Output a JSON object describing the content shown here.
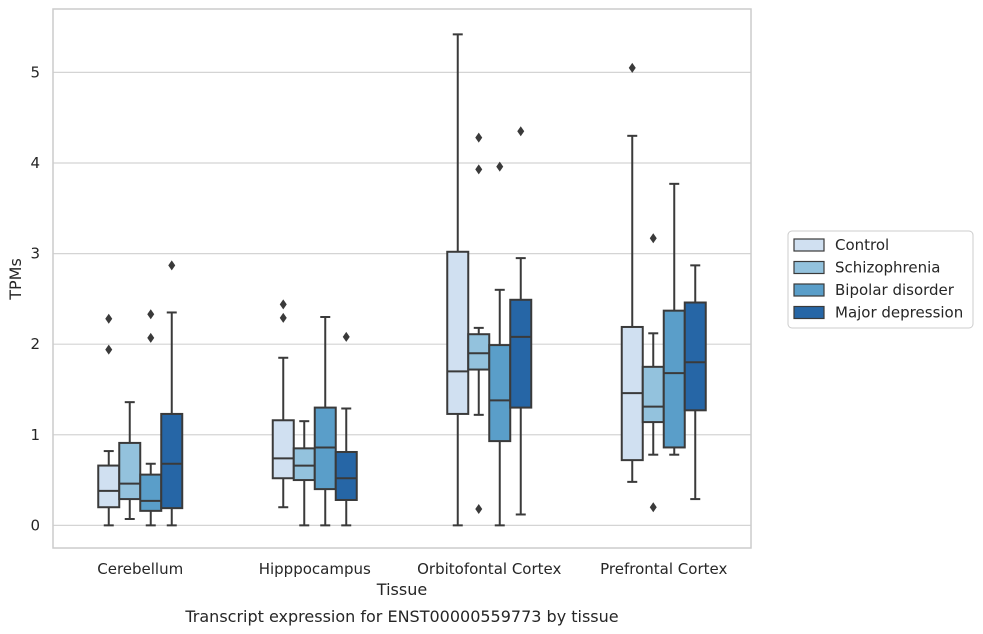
{
  "chart_data": {
    "type": "box",
    "title": "Transcript expression for ENST00000559773 by tissue",
    "xlabel": "Tissue",
    "ylabel": "TPMs",
    "ylim": [
      -0.25,
      5.7
    ],
    "yticks": [
      0,
      1,
      2,
      3,
      4,
      5
    ],
    "grid": "horizontal",
    "legend_position": "right",
    "categories": [
      "Cerebellum",
      "Hipppocampus",
      "Orbitofontal Cortex",
      "Prefrontal Cortex"
    ],
    "series": [
      {
        "name": "Control",
        "color": "#d0e0f1",
        "boxes": [
          {
            "min": 0.0,
            "q1": 0.2,
            "median": 0.38,
            "q3": 0.66,
            "max": 0.82,
            "outliers": [
              1.94,
              2.28
            ]
          },
          {
            "min": 0.2,
            "q1": 0.52,
            "median": 0.74,
            "q3": 1.16,
            "max": 1.85,
            "outliers": [
              2.29,
              2.44
            ]
          },
          {
            "min": 0.0,
            "q1": 1.23,
            "median": 1.7,
            "q3": 3.02,
            "max": 5.42,
            "outliers": []
          },
          {
            "min": 0.48,
            "q1": 0.72,
            "median": 1.46,
            "q3": 2.19,
            "max": 4.3,
            "outliers": [
              5.05
            ]
          }
        ]
      },
      {
        "name": "Schizophrenia",
        "color": "#93c2dd",
        "boxes": [
          {
            "min": 0.07,
            "q1": 0.29,
            "median": 0.46,
            "q3": 0.91,
            "max": 1.36,
            "outliers": []
          },
          {
            "min": 0.0,
            "q1": 0.5,
            "median": 0.66,
            "q3": 0.85,
            "max": 1.15,
            "outliers": []
          },
          {
            "min": 1.22,
            "q1": 1.72,
            "median": 1.9,
            "q3": 2.11,
            "max": 2.18,
            "outliers": [
              0.18,
              3.93,
              4.28
            ]
          },
          {
            "min": 0.78,
            "q1": 1.14,
            "median": 1.31,
            "q3": 1.75,
            "max": 2.12,
            "outliers": [
              0.2,
              3.17
            ]
          }
        ]
      },
      {
        "name": "Bipolar disorder",
        "color": "#5a9ec9",
        "boxes": [
          {
            "min": 0.0,
            "q1": 0.16,
            "median": 0.27,
            "q3": 0.56,
            "max": 0.68,
            "outliers": [
              2.07,
              2.33
            ]
          },
          {
            "min": 0.0,
            "q1": 0.4,
            "median": 0.86,
            "q3": 1.3,
            "max": 2.3,
            "outliers": []
          },
          {
            "min": 0.0,
            "q1": 0.93,
            "median": 1.38,
            "q3": 1.99,
            "max": 2.6,
            "outliers": [
              3.96
            ]
          },
          {
            "min": 0.78,
            "q1": 0.86,
            "median": 1.68,
            "q3": 2.37,
            "max": 3.77,
            "outliers": []
          }
        ]
      },
      {
        "name": "Major depression",
        "color": "#2666a6",
        "boxes": [
          {
            "min": 0.0,
            "q1": 0.19,
            "median": 0.68,
            "q3": 1.23,
            "max": 2.35,
            "outliers": [
              2.87
            ]
          },
          {
            "min": 0.0,
            "q1": 0.28,
            "median": 0.52,
            "q3": 0.81,
            "max": 1.29,
            "outliers": [
              2.08
            ]
          },
          {
            "min": 0.12,
            "q1": 1.3,
            "median": 2.08,
            "q3": 2.49,
            "max": 2.95,
            "outliers": [
              4.35
            ]
          },
          {
            "min": 0.29,
            "q1": 1.27,
            "median": 1.8,
            "q3": 2.46,
            "max": 2.87,
            "outliers": []
          }
        ]
      }
    ]
  }
}
